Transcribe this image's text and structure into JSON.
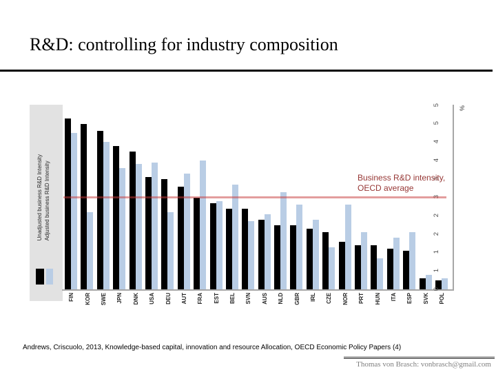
{
  "slide": {
    "title": "R&D: controlling for industry composition",
    "footer": {
      "citation": "Andrews, Criscuolo, 2013, Knowledge-based capital, innovation and resource Allocation, OECD Economic Policy Papers (4)",
      "author_email": "Thomas von Brasch: vonbrasch@gmail.com"
    }
  },
  "chart": {
    "percent_label": "%",
    "annotation_line1": "Business R&D intensity,",
    "annotation_line2": "OECD average",
    "annotation_color": "#963634",
    "legend": {
      "items": [
        {
          "label": "Unadjusted business R&D Intensity",
          "color": "#000000"
        },
        {
          "label": "Adjusted business R&D Intensity",
          "color": "#b9cde5"
        }
      ],
      "box_color": "#e2e2e2"
    }
  },
  "chart_data": {
    "type": "bar",
    "title": "",
    "xlabel": "",
    "ylabel": "%",
    "ylim": [
      0,
      5
    ],
    "grid": false,
    "legend_position": "left",
    "categories": [
      "FIN",
      "KOR",
      "SWE",
      "JPN",
      "DNK",
      "USA",
      "DEU",
      "AUT",
      "FRA",
      "EST",
      "BEL",
      "SVN",
      "AUS",
      "NLD",
      "GBR",
      "IRL",
      "CZE",
      "NOR",
      "PRT",
      "HUN",
      "ITA",
      "ESP",
      "SVK",
      "POL"
    ],
    "series": [
      {
        "name": "Unadjusted business R&D Intensity",
        "color": "#000000",
        "values": [
          4.65,
          4.5,
          4.3,
          3.9,
          3.75,
          3.05,
          3.0,
          2.8,
          2.5,
          2.35,
          2.2,
          2.2,
          1.9,
          1.75,
          1.75,
          1.65,
          1.55,
          1.3,
          1.2,
          1.2,
          1.1,
          1.05,
          0.3,
          0.25
        ]
      },
      {
        "name": "Adjusted business R&D Intensity",
        "color": "#b9cde5",
        "values": [
          4.25,
          2.1,
          4.0,
          3.3,
          3.4,
          3.45,
          2.1,
          3.15,
          3.5,
          2.4,
          2.85,
          1.85,
          2.05,
          2.65,
          2.3,
          1.9,
          1.15,
          2.3,
          1.55,
          0.85,
          1.4,
          1.55,
          0.4,
          0.3
        ]
      }
    ],
    "tick_labels_bottom_to_top": [
      "0",
      "1",
      "1",
      "2",
      "2",
      "3",
      "3",
      "4",
      "4",
      "5",
      "5"
    ],
    "reference_line": {
      "value": 2.5,
      "label": "Business R&D intensity, OECD average",
      "rgba": "rgba(200,60,60,0.5)"
    }
  }
}
